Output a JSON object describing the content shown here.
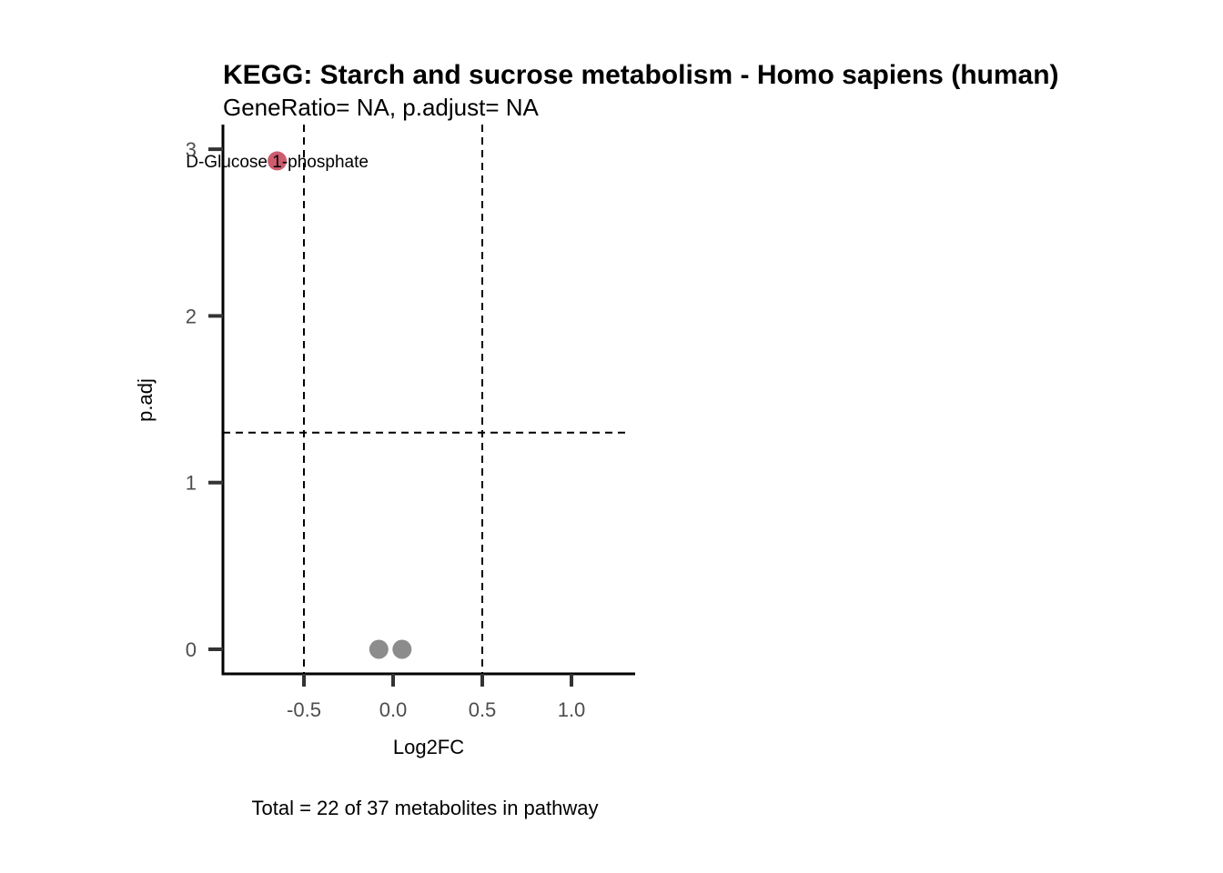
{
  "chart_data": {
    "type": "scatter",
    "title": "KEGG: Starch and sucrose metabolism - Homo sapiens (human)",
    "subtitle": "GeneRatio= NA, p.adjust= NA",
    "xlabel": "Log2FC",
    "ylabel": "p.adj",
    "caption": "Total = 22 of 37 metabolites in pathway",
    "xlim": [
      -0.95,
      1.35
    ],
    "ylim": [
      -0.15,
      3.15
    ],
    "x_ticks": [
      -0.5,
      0.0,
      0.5,
      1.0
    ],
    "x_tick_labels": [
      "-0.5",
      "0.0",
      "0.5",
      "1.0"
    ],
    "y_ticks": [
      0,
      1,
      2,
      3
    ],
    "y_tick_labels": [
      "0",
      "1",
      "2",
      "3"
    ],
    "reference_lines": {
      "vertical": [
        -0.5,
        0.5
      ],
      "horizontal": [
        1.3
      ]
    },
    "grid": false,
    "legend": "none",
    "colors": {
      "significant": "#cd5c6e",
      "not_significant": "#8c8c8c",
      "axis": "#000000",
      "tick": "#333333"
    },
    "points": [
      {
        "x": -0.65,
        "y": 2.93,
        "label": "D-Glucose 1-phosphate",
        "significant": true
      },
      {
        "x": -0.08,
        "y": 0.0,
        "label": "",
        "significant": false
      },
      {
        "x": 0.05,
        "y": 0.0,
        "label": "",
        "significant": false
      }
    ]
  }
}
